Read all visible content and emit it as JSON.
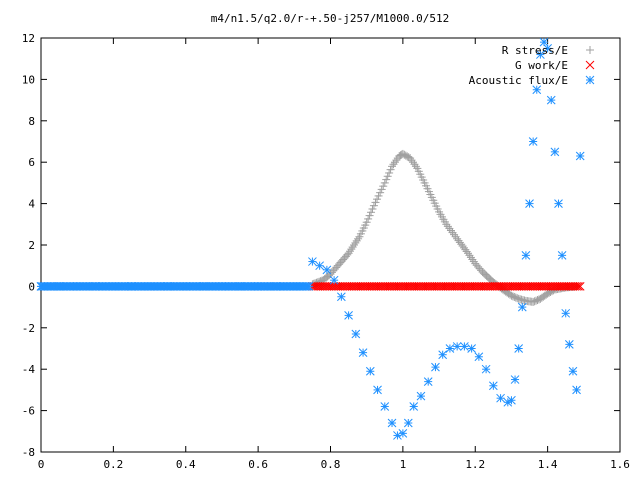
{
  "chart_data": {
    "type": "scatter",
    "title": "m4/n1.5/q2.0/r-+.50-j257/M1000.0/512",
    "xlabel": "",
    "ylabel": "",
    "xlim": [
      0,
      1.6
    ],
    "ylim": [
      -8,
      12
    ],
    "x_ticks": [
      "0",
      "0.2",
      "0.4",
      "0.6",
      "0.8",
      "1",
      "1.2",
      "1.4",
      "1.6"
    ],
    "y_ticks": [
      "-8",
      "-6",
      "-4",
      "-2",
      "0",
      "2",
      "4",
      "6",
      "8",
      "10",
      "12"
    ],
    "grid": false,
    "legend_position": "top-right",
    "series": [
      {
        "name": "R stress/E",
        "marker": "plus",
        "color": "#a0a0a0",
        "x": [
          0.75,
          0.78,
          0.8,
          0.82,
          0.85,
          0.88,
          0.9,
          0.92,
          0.95,
          0.97,
          0.99,
          1.0,
          1.02,
          1.04,
          1.06,
          1.08,
          1.1,
          1.12,
          1.15,
          1.18,
          1.2,
          1.22,
          1.25,
          1.28,
          1.3,
          1.32,
          1.34,
          1.36,
          1.38,
          1.4,
          1.42,
          1.45,
          1.48
        ],
        "y": [
          0.1,
          0.3,
          0.6,
          1.0,
          1.6,
          2.4,
          3.1,
          3.9,
          5.0,
          5.8,
          6.3,
          6.4,
          6.2,
          5.7,
          5.0,
          4.3,
          3.6,
          3.0,
          2.3,
          1.6,
          1.1,
          0.7,
          0.2,
          -0.2,
          -0.45,
          -0.6,
          -0.7,
          -0.75,
          -0.6,
          -0.35,
          -0.15,
          -0.05,
          0.0
        ]
      },
      {
        "name": "G work/E",
        "marker": "cross",
        "color": "#ff0000",
        "x": [
          0.75,
          0.78,
          0.81,
          0.84,
          0.87,
          0.9,
          0.93,
          0.96,
          0.99,
          1.02,
          1.05,
          1.08,
          1.11,
          1.14,
          1.17,
          1.2,
          1.23,
          1.26,
          1.29,
          1.32,
          1.35,
          1.38,
          1.41,
          1.44,
          1.47,
          1.49
        ],
        "y": [
          0,
          0,
          0,
          0,
          0,
          0,
          0,
          0,
          0,
          0,
          0,
          0,
          0,
          0,
          0,
          0,
          0,
          0,
          0,
          0,
          0,
          0,
          0,
          0,
          0,
          0
        ]
      },
      {
        "name": "Acoustic flux/E",
        "marker": "star",
        "color": "#1e90ff",
        "x": [
          0.0,
          0.05,
          0.1,
          0.15,
          0.2,
          0.25,
          0.3,
          0.35,
          0.4,
          0.45,
          0.5,
          0.55,
          0.6,
          0.65,
          0.7,
          0.74,
          0.75,
          0.77,
          0.79,
          0.81,
          0.83,
          0.85,
          0.87,
          0.89,
          0.91,
          0.93,
          0.95,
          0.97,
          0.985,
          1.0,
          1.015,
          1.03,
          1.05,
          1.07,
          1.09,
          1.11,
          1.13,
          1.15,
          1.17,
          1.19,
          1.21,
          1.23,
          1.25,
          1.27,
          1.29,
          1.3,
          1.31,
          1.32,
          1.33,
          1.34,
          1.35,
          1.36,
          1.37,
          1.38,
          1.39,
          1.4,
          1.41,
          1.42,
          1.43,
          1.44,
          1.45,
          1.46,
          1.47,
          1.48,
          1.49
        ],
        "y": [
          0,
          0,
          0,
          0,
          0,
          0,
          0,
          0,
          0,
          0,
          0,
          0,
          0,
          0,
          0,
          0,
          1.2,
          1.0,
          0.8,
          0.3,
          -0.5,
          -1.4,
          -2.3,
          -3.2,
          -4.1,
          -5.0,
          -5.8,
          -6.6,
          -7.2,
          -7.1,
          -6.6,
          -5.8,
          -5.3,
          -4.6,
          -3.9,
          -3.3,
          -3.0,
          -2.9,
          -2.9,
          -3.0,
          -3.4,
          -4.0,
          -4.8,
          -5.4,
          -5.6,
          -5.5,
          -4.5,
          -3.0,
          -1.0,
          1.5,
          4.0,
          7.0,
          9.5,
          11.2,
          11.8,
          11.5,
          9.0,
          6.5,
          4.0,
          1.5,
          -1.3,
          -2.8,
          -4.1,
          -5.0,
          6.3
        ]
      }
    ]
  }
}
